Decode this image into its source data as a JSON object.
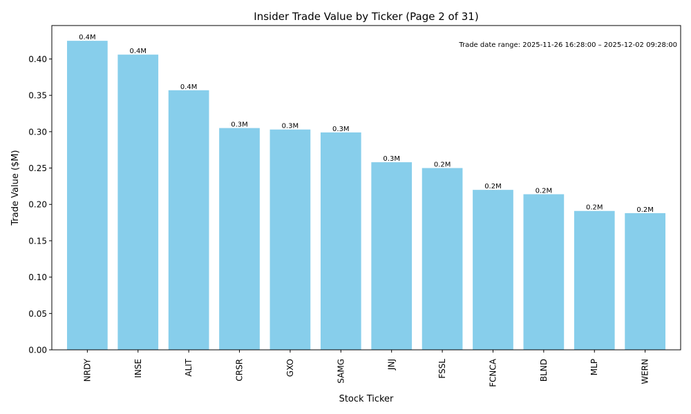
{
  "chart_data": {
    "type": "bar",
    "title": "Insider Trade Value by Ticker (Page 2 of 31)",
    "xlabel": "Stock Ticker",
    "ylabel": "Trade Value ($M)",
    "annotation": "Trade date range: 2025-11-26 16:28:00 – 2025-12-02 09:28:00",
    "categories": [
      "NRDY",
      "INSE",
      "ALIT",
      "CRSR",
      "GXO",
      "SAMG",
      "JNJ",
      "FSSL",
      "FCNCA",
      "BLND",
      "MLP",
      "WERN"
    ],
    "values": [
      0.425,
      0.406,
      0.357,
      0.305,
      0.303,
      0.299,
      0.258,
      0.25,
      0.22,
      0.214,
      0.191,
      0.188
    ],
    "data_labels": [
      "0.4M",
      "0.4M",
      "0.4M",
      "0.3M",
      "0.3M",
      "0.3M",
      "0.3M",
      "0.2M",
      "0.2M",
      "0.2M",
      "0.2M",
      "0.2M"
    ],
    "yticks": [
      "0.00",
      "0.05",
      "0.10",
      "0.15",
      "0.20",
      "0.25",
      "0.30",
      "0.35",
      "0.40"
    ],
    "ylim": [
      0,
      0.446
    ],
    "bar_color": "#87ceeb",
    "grid": false,
    "legend": "none"
  }
}
